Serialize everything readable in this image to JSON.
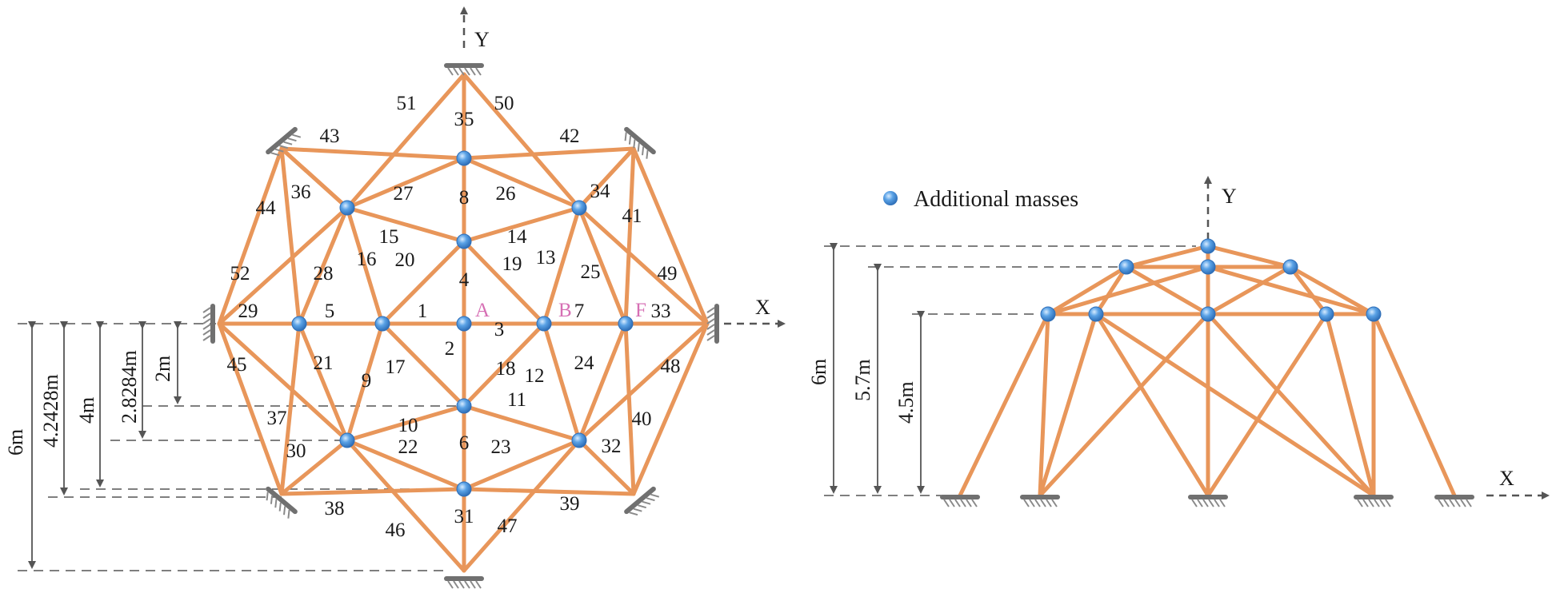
{
  "left": {
    "axis_x": "X",
    "axis_y": "Y",
    "point_labels": [
      "A",
      "B",
      "F"
    ],
    "member_labels": [
      "51",
      "50",
      "35",
      "43",
      "42",
      "36",
      "27",
      "8",
      "26",
      "34",
      "44",
      "41",
      "15",
      "14",
      "52",
      "28",
      "16",
      "20",
      "4",
      "19",
      "13",
      "25",
      "49",
      "29",
      "5",
      "1",
      "3",
      "7",
      "33",
      "45",
      "21",
      "17",
      "2",
      "18",
      "12",
      "24",
      "48",
      "9",
      "11",
      "37",
      "10",
      "40",
      "30",
      "22",
      "6",
      "23",
      "32",
      "38",
      "39",
      "46",
      "31",
      "47"
    ],
    "dimensions": [
      "6m",
      "4.2428m",
      "4m",
      "2.8284m",
      "2m"
    ]
  },
  "right": {
    "axis_x": "X",
    "axis_y": "Y",
    "legend": "Additional masses",
    "dimensions": [
      "6m",
      "5.7m",
      "4.5m"
    ]
  },
  "colors": {
    "member": "#e8965a",
    "node": "#4a90d9",
    "support": "#707070",
    "point_label": "#d66fb4"
  }
}
